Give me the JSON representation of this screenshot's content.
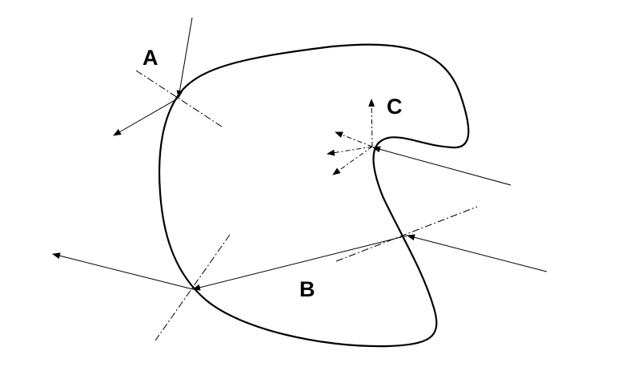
{
  "labels": {
    "a": "A",
    "b": "B",
    "c": "C"
  },
  "colors": {
    "stroke": "#000000",
    "background": "#ffffff"
  }
}
